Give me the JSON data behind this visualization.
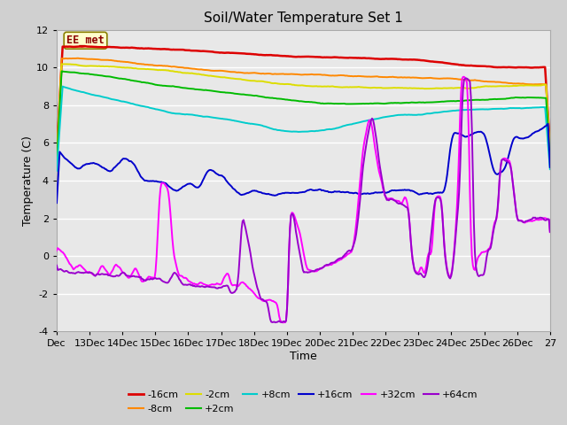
{
  "title": "Soil/Water Temperature Set 1",
  "xlabel": "Time",
  "ylabel": "Temperature (C)",
  "xlim": [
    0,
    15
  ],
  "ylim": [
    -4,
    12
  ],
  "yticks": [
    -4,
    -2,
    0,
    2,
    4,
    6,
    8,
    10,
    12
  ],
  "xtick_labels": [
    "Dec",
    "13Dec",
    "14Dec",
    "15Dec",
    "16Dec",
    "17Dec",
    "18Dec",
    "19Dec",
    "20Dec",
    "21Dec",
    "22Dec",
    "23Dec",
    "24Dec",
    "25Dec",
    "26Dec",
    "27"
  ],
  "xtick_positions": [
    0,
    1,
    2,
    3,
    4,
    5,
    6,
    7,
    8,
    9,
    10,
    11,
    12,
    13,
    14,
    15
  ],
  "bg_color": "#e8e8e8",
  "fig_color": "#d0d0d0",
  "annotation_text": "EE_met",
  "annotation_color": "#8b0000",
  "annotation_bg": "#ffffcc",
  "lines": {
    "-16cm": {
      "color": "#dd0000",
      "linewidth": 1.8
    },
    "-8cm": {
      "color": "#ff8800",
      "linewidth": 1.4
    },
    "-2cm": {
      "color": "#dddd00",
      "linewidth": 1.4
    },
    "+2cm": {
      "color": "#00bb00",
      "linewidth": 1.4
    },
    "+8cm": {
      "color": "#00cccc",
      "linewidth": 1.4
    },
    "+16cm": {
      "color": "#0000cc",
      "linewidth": 1.4
    },
    "+32cm": {
      "color": "#ff00ff",
      "linewidth": 1.4
    },
    "+64cm": {
      "color": "#9900cc",
      "linewidth": 1.4
    }
  }
}
